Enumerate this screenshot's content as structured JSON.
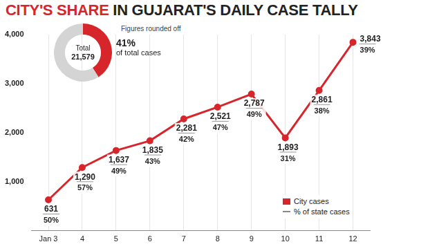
{
  "chart_data": [
    {
      "type": "line",
      "title": "CITY'S SHARE IN GUJARAT'S DAILY CASE TALLY",
      "subtitle": "Figures rounded off",
      "categories": [
        "Jan 3",
        "4",
        "5",
        "6",
        "7",
        "8",
        "9",
        "10",
        "11",
        "12"
      ],
      "series": [
        {
          "name": "City cases",
          "color": "#d7262b",
          "marker": "circle",
          "line_style": "solid",
          "values": [
            631,
            1290,
            1637,
            1835,
            2281,
            2521,
            2787,
            1893,
            2861,
            3843
          ],
          "value_labels": [
            "631",
            "1,290",
            "1,637",
            "1,835",
            "2,281",
            "2,521",
            "2,787",
            "1,893",
            "2,861",
            "3,843"
          ]
        }
      ],
      "share": {
        "name": "% of state cases",
        "values": [
          50,
          57,
          49,
          43,
          42,
          47,
          49,
          31,
          38,
          39
        ],
        "value_labels": [
          "50%",
          "57%",
          "49%",
          "43%",
          "42%",
          "47%",
          "49%",
          "31%",
          "38%",
          "39%"
        ]
      },
      "ylim": [
        0,
        4000
      ],
      "yticks": [
        {
          "value": 1000,
          "label": "1,000"
        },
        {
          "value": 2000,
          "label": "2,000"
        },
        {
          "value": 3000,
          "label": "3,000"
        },
        {
          "value": 4000,
          "label": "4,000"
        }
      ],
      "grid": "x",
      "data_labels": true,
      "legend": "lower right"
    },
    {
      "type": "doughnut",
      "center_text": [
        "Total",
        "21,579"
      ],
      "values": [
        41,
        59
      ],
      "value_labels": [
        "41%",
        null
      ],
      "annotation": "of total cases",
      "colors": [
        "#d7262b",
        "#d4d4d4"
      ]
    }
  ]
}
